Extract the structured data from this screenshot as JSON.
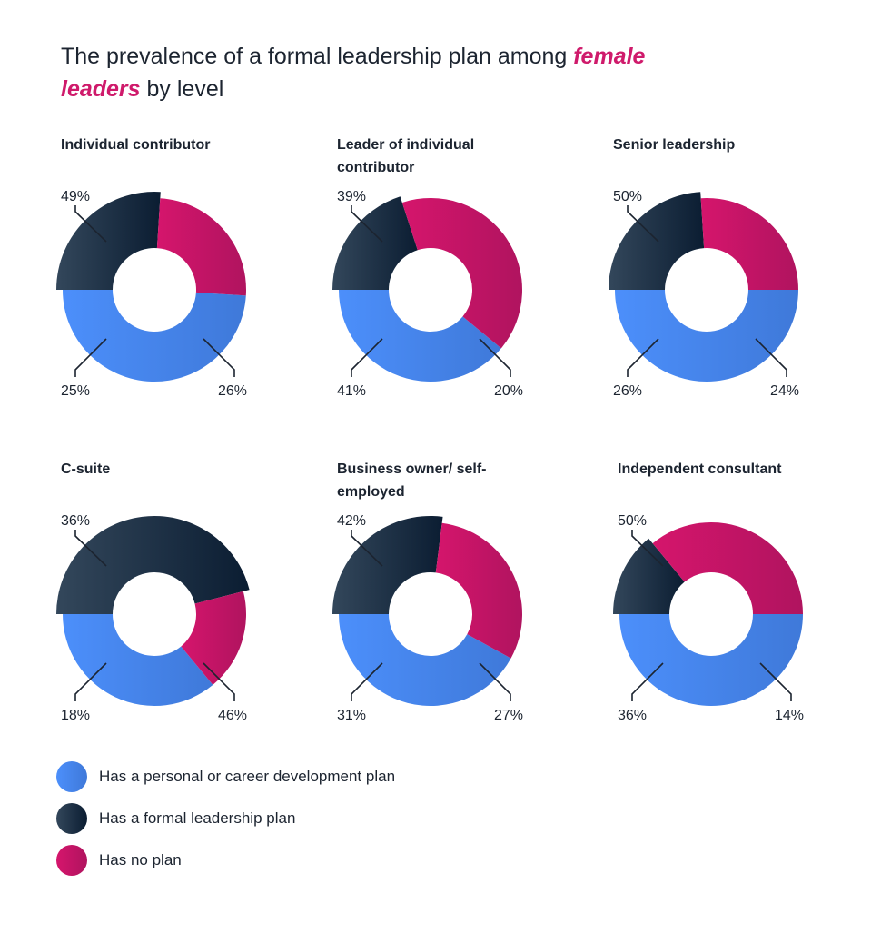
{
  "title": {
    "part1": "The prevalence of a formal leadership plan among ",
    "highlight1": "female",
    "highlight2": "leaders",
    "part2": " by level"
  },
  "colors": {
    "personal": [
      "#4c8ffb",
      "#3f79d9"
    ],
    "formal": [
      "#33475b",
      "#0b1d32"
    ],
    "none": [
      "#d5156c",
      "#b0145f"
    ]
  },
  "chart_data": {
    "type": "pie",
    "categories": [
      "Has a personal or career development plan",
      "Has a formal leadership plan",
      "Has no plan"
    ],
    "panels": [
      {
        "title": "Individual contributor",
        "values": [
          49,
          26,
          25
        ],
        "labels": [
          "49%",
          "26%",
          "25%"
        ]
      },
      {
        "title": "Leader of individual contributor",
        "values": [
          39,
          20,
          41
        ],
        "labels": [
          "39%",
          "20%",
          "41%"
        ]
      },
      {
        "title": "Senior leadership",
        "values": [
          50,
          24,
          26
        ],
        "labels": [
          "50%",
          "24%",
          "26%"
        ]
      },
      {
        "title": "C-suite",
        "values": [
          36,
          46,
          18
        ],
        "labels": [
          "36%",
          "46%",
          "18%"
        ]
      },
      {
        "title": "Business owner/ self-employed",
        "values": [
          42,
          27,
          31
        ],
        "labels": [
          "42%",
          "27%",
          "31%"
        ]
      },
      {
        "title": "Independent consultant",
        "values": [
          50,
          14,
          36
        ],
        "labels": [
          "50%",
          "14%",
          "36%"
        ]
      }
    ]
  },
  "legend": [
    {
      "label": "Has a personal or career development plan"
    },
    {
      "label": "Has a formal leadership plan"
    },
    {
      "label": "Has no plan"
    }
  ]
}
